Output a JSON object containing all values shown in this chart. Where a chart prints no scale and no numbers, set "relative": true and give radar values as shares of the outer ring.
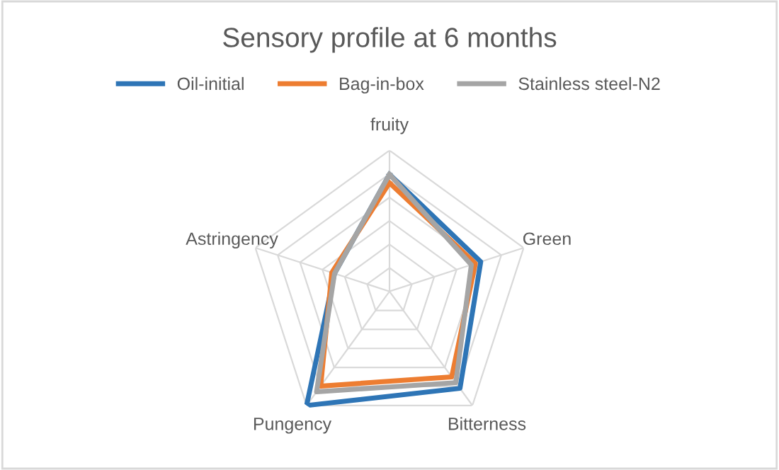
{
  "chart_data": {
    "type": "radar",
    "title": "Sensory profile at 6 months",
    "relative": true,
    "grid": true,
    "legend": "top",
    "categories": [
      "fruity",
      "Green",
      "Bitterness",
      "Pungency",
      "Astringency"
    ],
    "series": [
      {
        "name": "Oil-initial",
        "color": "#2e75b6",
        "values": [
          0.83,
          0.68,
          0.85,
          1.0,
          0.41
        ]
      },
      {
        "name": "Bag-in-box",
        "color": "#ed7d31",
        "values": [
          0.77,
          0.64,
          0.75,
          0.83,
          0.43
        ]
      },
      {
        "name": "Stainless steel-N2",
        "color": "#a5a5a5",
        "values": [
          0.83,
          0.61,
          0.8,
          0.88,
          0.41
        ]
      }
    ]
  }
}
